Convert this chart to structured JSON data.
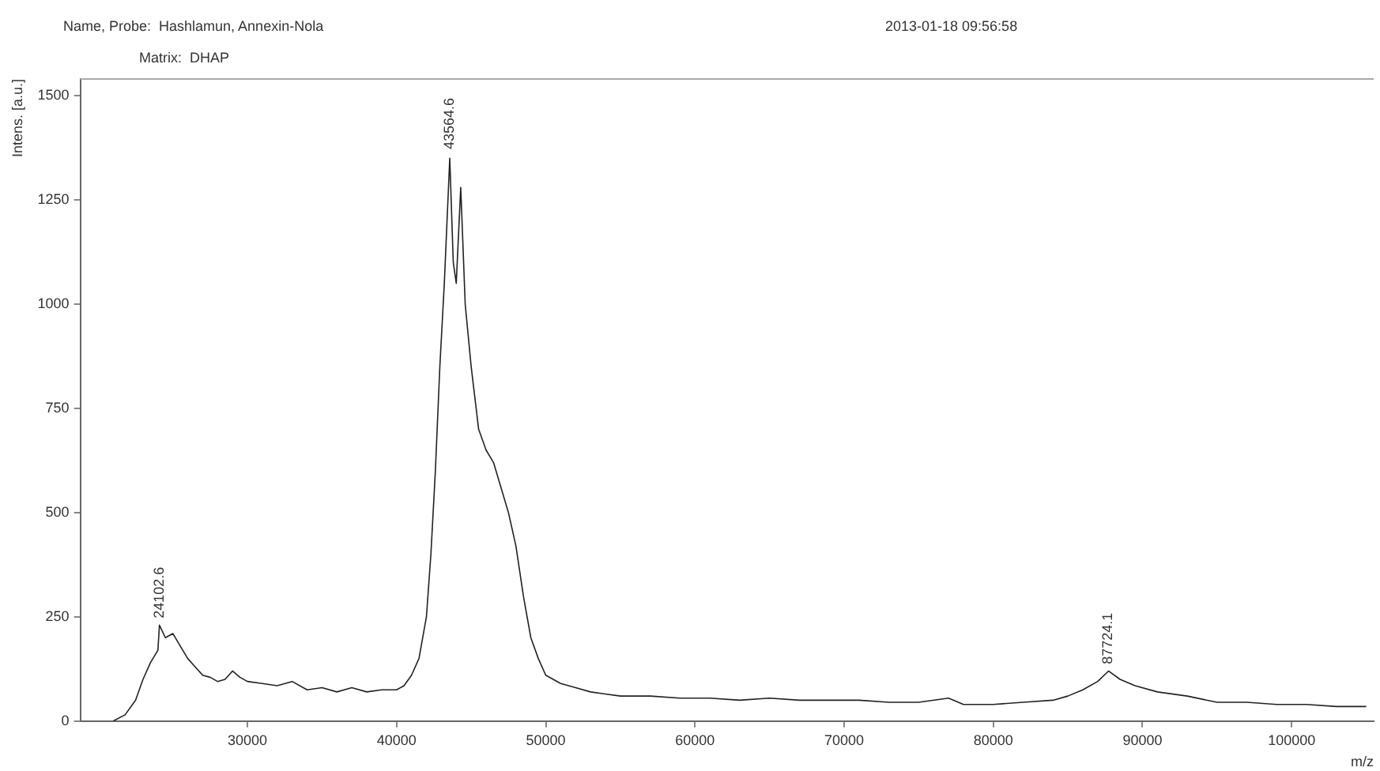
{
  "chart_data": {
    "type": "line",
    "xlabel": "m/z",
    "ylabel": "Intens. [a.u.]",
    "annotations": [
      "Name, Probe:  Hashlamun, Annexin-Nola",
      "Matrix:  DHAP",
      "2013-01-18 09:56:58",
      {
        "text": "24102.6",
        "x": 24102.6,
        "y": 235
      },
      {
        "text": "43564.6",
        "x": 43564.6,
        "y": 1360
      },
      {
        "text": "87724.1",
        "x": 87724.1,
        "y": 125
      }
    ],
    "x": [
      21000,
      21800,
      22500,
      23000,
      23500,
      24000,
      24102.6,
      24500,
      25000,
      25500,
      26000,
      26500,
      27000,
      27500,
      28000,
      28500,
      29000,
      29500,
      30000,
      31000,
      32000,
      33000,
      34000,
      35000,
      36000,
      37000,
      38000,
      39000,
      40000,
      40500,
      41000,
      41500,
      42000,
      42300,
      42600,
      42900,
      43200,
      43564.6,
      43800,
      44000,
      44300,
      44600,
      45000,
      45500,
      46000,
      46500,
      47000,
      47500,
      48000,
      48500,
      49000,
      49500,
      50000,
      51000,
      52000,
      53000,
      55000,
      57000,
      59000,
      61000,
      63000,
      65000,
      67000,
      69000,
      71000,
      73000,
      75000,
      77000,
      78000,
      80000,
      82000,
      84000,
      85000,
      86000,
      87000,
      87724.1,
      88500,
      89500,
      91000,
      93000,
      95000,
      97000,
      99000,
      101000,
      103000,
      105000
    ],
    "series": [
      {
        "color": "#222222",
        "values": [
          0,
          15,
          50,
          100,
          140,
          170,
          230,
          200,
          210,
          180,
          150,
          130,
          110,
          105,
          95,
          100,
          120,
          105,
          95,
          90,
          85,
          95,
          75,
          80,
          70,
          80,
          70,
          75,
          75,
          85,
          110,
          150,
          250,
          400,
          600,
          850,
          1050,
          1350,
          1100,
          1050,
          1280,
          1000,
          850,
          700,
          650,
          620,
          560,
          500,
          420,
          300,
          200,
          150,
          110,
          90,
          80,
          70,
          60,
          60,
          55,
          55,
          50,
          55,
          50,
          50,
          50,
          45,
          45,
          55,
          40,
          40,
          45,
          50,
          60,
          75,
          95,
          120,
          100,
          85,
          70,
          60,
          45,
          45,
          40,
          40,
          35,
          35
        ]
      }
    ],
    "xlim": [
      18800,
      105500
    ],
    "ylim": [
      0,
      1540
    ],
    "xticks": [
      30000,
      40000,
      50000,
      60000,
      70000,
      80000,
      90000,
      100000
    ],
    "yticks": [
      0,
      250,
      500,
      750,
      1000,
      1250,
      1500
    ],
    "grid": false,
    "legend": false,
    "marker": "none",
    "line_style": "solid"
  }
}
